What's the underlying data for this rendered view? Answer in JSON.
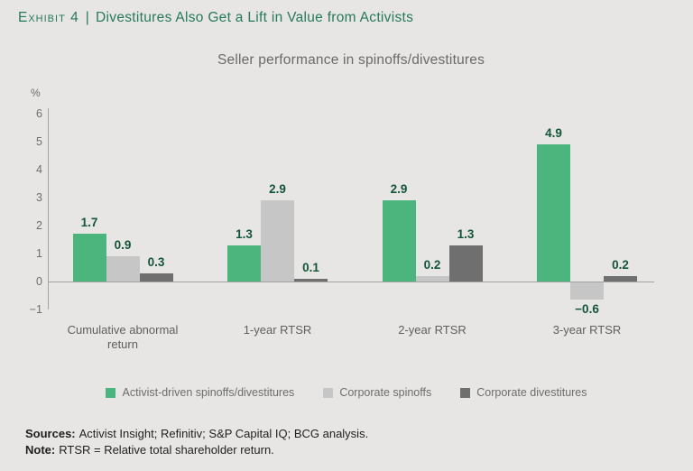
{
  "page": {
    "exhibit_label": "Exhibit 4",
    "separator": "|",
    "title": "Divestitures Also Get a Lift in Value from Activists"
  },
  "chart_data": {
    "type": "bar",
    "title": "Seller performance in spinoffs/divestitures",
    "xlabel": "",
    "ylabel": "%",
    "ylim": [
      -1,
      6
    ],
    "yticks": [
      6,
      5,
      4,
      3,
      2,
      1,
      0,
      -1
    ],
    "grid": false,
    "legend_position": "bottom",
    "categories": [
      "Cumulative abnormal return",
      "1-year RTSR",
      "2-year RTSR",
      "3-year RTSR"
    ],
    "series": [
      {
        "name": "Activist-driven spinoffs/divestitures",
        "color": "#4cb57e",
        "values": [
          1.7,
          1.3,
          2.9,
          4.9
        ]
      },
      {
        "name": "Corporate spinoffs",
        "color": "#c6c6c6",
        "values": [
          0.9,
          2.9,
          0.2,
          -0.6
        ]
      },
      {
        "name": "Corporate divestitures",
        "color": "#6f6f6f",
        "values": [
          0.3,
          0.1,
          1.3,
          0.2
        ]
      }
    ]
  },
  "footer": {
    "sources_label": "Sources:",
    "sources_text": "Activist Insight; Refinitiv; S&P Capital IQ; BCG analysis.",
    "note_label": "Note:",
    "note_text": "RTSR = Relative total shareholder return."
  },
  "colors": {
    "background": "#e7e6e4",
    "title_green": "#26795d",
    "value_label_green": "#14553a",
    "bar_green": "#4cb57e",
    "bar_light_gray": "#c6c6c6",
    "bar_dark_gray": "#6f6f6f",
    "axis_gray": "#a3a3a3"
  }
}
